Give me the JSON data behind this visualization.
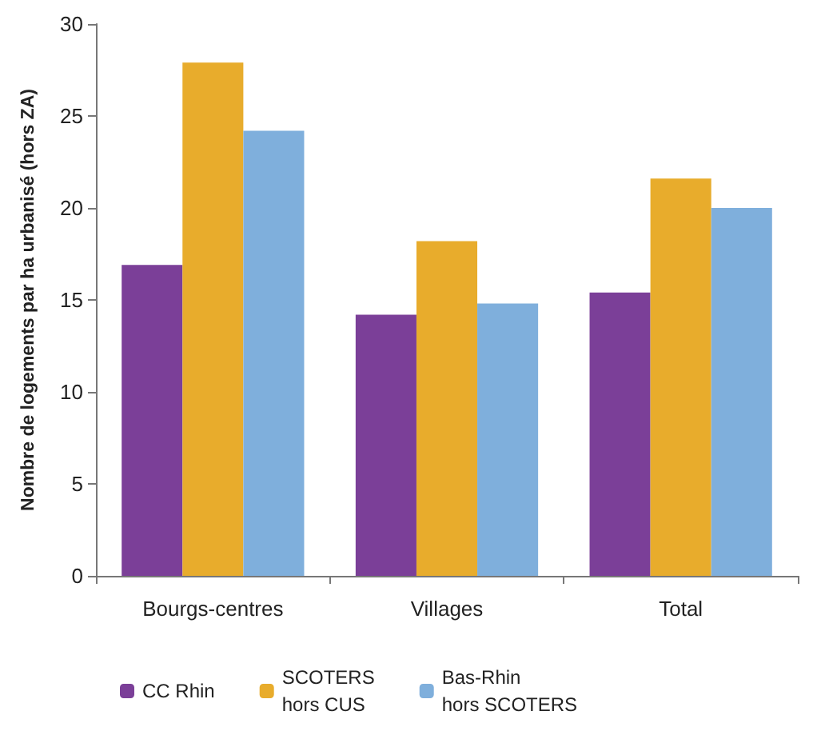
{
  "chart_data": {
    "type": "bar",
    "ylabel": "Nombre de logements par ha urbanisé (hors ZA)",
    "categories": [
      "Bourgs-centres",
      "Villages",
      "Total"
    ],
    "series": [
      {
        "name": "CC Rhin",
        "color": "#7b3f98",
        "values": [
          16.9,
          14.2,
          15.4
        ]
      },
      {
        "name": "SCOTERS\nhors CUS",
        "color": "#e8ac2c",
        "values": [
          27.9,
          18.2,
          21.6
        ]
      },
      {
        "name": "Bas-Rhin\nhors SCOTERS",
        "color": "#7fafdc",
        "values": [
          24.2,
          14.8,
          20.0
        ]
      }
    ],
    "ylim": [
      0,
      30
    ],
    "yticks": [
      0,
      5,
      10,
      15,
      20,
      25,
      30
    ],
    "grid": false,
    "legend": "bottom"
  }
}
